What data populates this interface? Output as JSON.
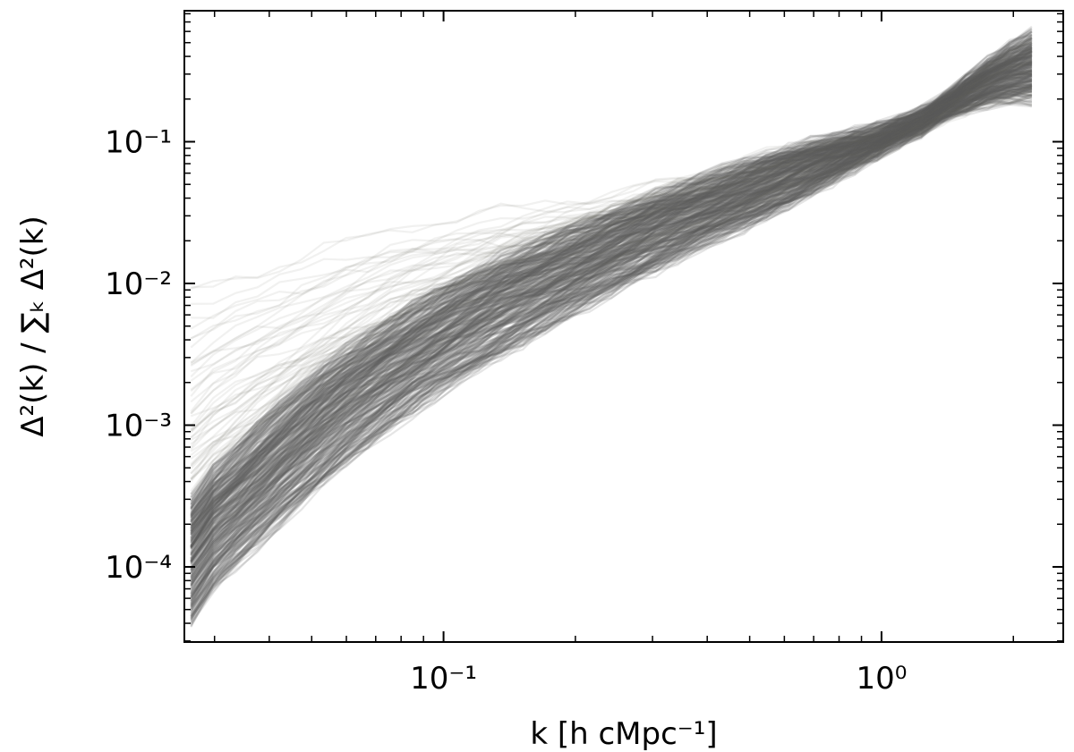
{
  "chart_data": {
    "type": "line",
    "title": "",
    "xlabel": "k [h cMpc⁻¹]",
    "ylabel": "Δ²(k) / ∑ₖ Δ²(k)",
    "xscale": "log",
    "yscale": "log",
    "xlim": [
      0.0256,
      2.6
    ],
    "ylim": [
      2.95e-05,
      0.84
    ],
    "grid": false,
    "legend": "none",
    "x": [
      0.0265,
      0.0298,
      0.0335,
      0.0376,
      0.0422,
      0.0474,
      0.0533,
      0.0599,
      0.0673,
      0.0756,
      0.0849,
      0.0954,
      0.1071,
      0.1203,
      0.1352,
      0.1518,
      0.1706,
      0.1916,
      0.2153,
      0.2418,
      0.2716,
      0.3051,
      0.3428,
      0.3851,
      0.4326,
      0.4859,
      0.5459,
      0.6132,
      0.6888,
      0.7738,
      0.8692,
      0.9765,
      1.097,
      1.2323,
      1.3843,
      1.5551,
      1.747,
      1.9625,
      2.2046
    ],
    "x_ticks": [
      {
        "value": 0.1,
        "label": "10⁻¹"
      },
      {
        "value": 1,
        "label": "10⁰"
      }
    ],
    "y_ticks": [
      {
        "value": 0.0001,
        "label": "10⁻⁴"
      },
      {
        "value": 0.001,
        "label": "10⁻³"
      },
      {
        "value": 0.01,
        "label": "10⁻²"
      },
      {
        "value": 0.1,
        "label": "10⁻¹"
      }
    ],
    "line_color": "#5f605c",
    "series_count": 400,
    "series_summary": {
      "dense_band_lower_envelope": [
        4e-05,
        7e-05,
        0.0001,
        0.00014,
        0.0002,
        0.00028,
        0.00039,
        0.00054,
        0.00072,
        0.00095,
        0.00125,
        0.0016,
        0.002,
        0.0025,
        0.0031,
        0.0038,
        0.0047,
        0.0058,
        0.0071,
        0.0087,
        0.0105,
        0.0127,
        0.0152,
        0.018,
        0.0213,
        0.025,
        0.03,
        0.036,
        0.044,
        0.054,
        0.066,
        0.08,
        0.1,
        0.12,
        0.15,
        0.17,
        0.19,
        0.2,
        0.2
      ],
      "dense_band_upper_envelope": [
        0.0003,
        0.0005,
        0.0007,
        0.001,
        0.0014,
        0.0019,
        0.0026,
        0.0034,
        0.0044,
        0.0056,
        0.007,
        0.0086,
        0.0105,
        0.0126,
        0.015,
        0.0177,
        0.0206,
        0.024,
        0.0277,
        0.032,
        0.0367,
        0.042,
        0.048,
        0.0545,
        0.062,
        0.07,
        0.078,
        0.087,
        0.096,
        0.105,
        0.115,
        0.125,
        0.14,
        0.16,
        0.2,
        0.27,
        0.36,
        0.46,
        0.56
      ],
      "flat_outlier_example": [
        0.018,
        0.021,
        0.026,
        0.031,
        0.036,
        0.042,
        0.048,
        0.055,
        0.062,
        0.07,
        0.077,
        0.083,
        0.088,
        0.092,
        0.094,
        0.096,
        0.097,
        0.098,
        0.099,
        0.099,
        0.1,
        0.1,
        0.1,
        0.1,
        0.1,
        0.1,
        0.1,
        0.1,
        0.1,
        0.1,
        0.1,
        0.098,
        0.095,
        0.093,
        0.092,
        0.094,
        0.1,
        0.11,
        0.12
      ]
    }
  }
}
